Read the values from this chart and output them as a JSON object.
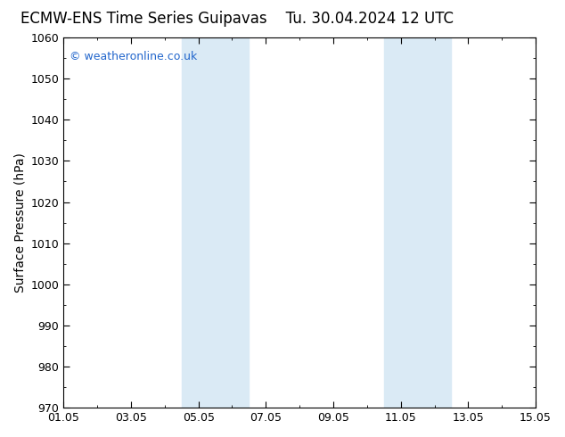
{
  "title": "ECMW-ENS Time Series Guipavas",
  "title2": "Tu. 30.04.2024 12 UTC",
  "ylabel": "Surface Pressure (hPa)",
  "ylim": [
    970,
    1060
  ],
  "ytick_step": 10,
  "xlim_start": 0,
  "xlim_end": 14,
  "xtick_labels": [
    "01.05",
    "03.05",
    "05.05",
    "07.05",
    "09.05",
    "11.05",
    "13.05",
    "15.05"
  ],
  "xtick_positions": [
    0,
    2,
    4,
    6,
    8,
    10,
    12,
    14
  ],
  "shaded_bands": [
    {
      "xmin": 3.5,
      "xmax": 5.5
    },
    {
      "xmin": 9.5,
      "xmax": 11.5
    }
  ],
  "band_color": "#daeaf5",
  "background_color": "#ffffff",
  "plot_bg_color": "#ffffff",
  "watermark_text": "© weatheronline.co.uk",
  "watermark_color": "#2266cc",
  "watermark_fontsize": 9,
  "title_fontsize": 12,
  "axis_label_fontsize": 10,
  "tick_fontsize": 9,
  "spine_color": "#000000"
}
